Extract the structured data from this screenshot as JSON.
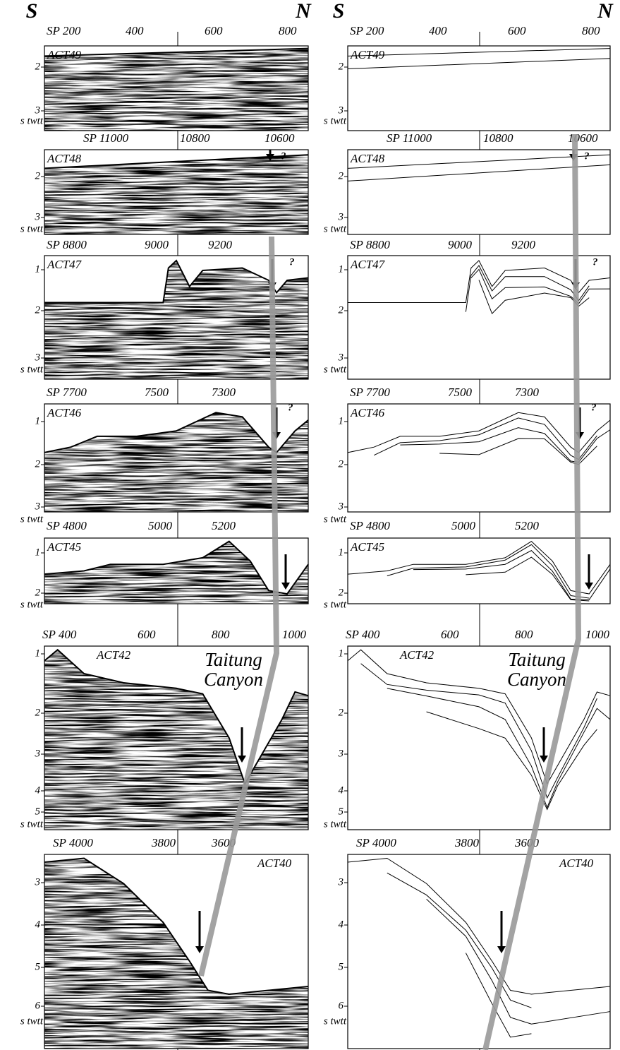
{
  "columns": [
    {
      "south": "S",
      "north": "N",
      "panels": [
        {
          "name": "ACT49",
          "sp_labels": [
            "SP 200",
            "400",
            "600",
            "800"
          ],
          "depth_labels": [
            "2",
            "3"
          ],
          "unit": "s twtt"
        },
        {
          "name": "ACT48",
          "sp_labels": [
            "SP 11000",
            "10800",
            "10600"
          ],
          "depth_labels": [
            "2",
            "3"
          ],
          "unit": "s twtt",
          "question": "?"
        },
        {
          "name": "ACT47",
          "sp_labels": [
            "SP 8800",
            "9000",
            "9200"
          ],
          "depth_labels": [
            "1",
            "2",
            "3"
          ],
          "unit": "s twtt",
          "question": "?"
        },
        {
          "name": "ACT46",
          "sp_labels": [
            "SP 7700",
            "7500",
            "7300"
          ],
          "depth_labels": [
            "1",
            "2",
            "3"
          ],
          "unit": "s twtt",
          "question": "?"
        },
        {
          "name": "ACT45",
          "sp_labels": [
            "SP 4800",
            "5000",
            "5200"
          ],
          "depth_labels": [
            "1",
            "2"
          ],
          "unit": "s twtt"
        },
        {
          "name": "ACT42",
          "sp_labels": [
            "SP 400",
            "600",
            "800",
            "1000"
          ],
          "depth_labels": [
            "1",
            "2",
            "3",
            "4",
            "5"
          ],
          "unit": "s twtt",
          "annotation": [
            "Taitung",
            "Canyon"
          ]
        },
        {
          "name": "ACT40",
          "sp_labels": [
            "SP 4000",
            "3800",
            "3600"
          ],
          "depth_labels": [
            "3",
            "4",
            "5",
            "6"
          ],
          "unit": "s twtt"
        }
      ]
    },
    {
      "south": "S",
      "north": "N",
      "panels": [
        {
          "name": "ACT49",
          "sp_labels": [
            "SP 200",
            "400",
            "600",
            "800"
          ],
          "depth_labels": [
            "2",
            "3"
          ],
          "unit": "s twtt"
        },
        {
          "name": "ACT48",
          "sp_labels": [
            "SP 11000",
            "10800",
            "10600"
          ],
          "depth_labels": [
            "2",
            "3"
          ],
          "unit": "s twtt",
          "question": "?"
        },
        {
          "name": "ACT47",
          "sp_labels": [
            "SP 8800",
            "9000",
            "9200"
          ],
          "depth_labels": [
            "1",
            "2",
            "3"
          ],
          "unit": "s twtt",
          "question": "?"
        },
        {
          "name": "ACT46",
          "sp_labels": [
            "SP 7700",
            "7500",
            "7300"
          ],
          "depth_labels": [
            "1",
            "2",
            "3"
          ],
          "unit": "s twtt",
          "question": "?"
        },
        {
          "name": "ACT45",
          "sp_labels": [
            "SP 4800",
            "5000",
            "5200"
          ],
          "depth_labels": [
            "1",
            "2"
          ],
          "unit": "s twtt"
        },
        {
          "name": "ACT42",
          "sp_labels": [
            "SP 400",
            "600",
            "800",
            "1000"
          ],
          "depth_labels": [
            "1",
            "2",
            "3",
            "4",
            "5"
          ],
          "unit": "s twtt",
          "annotation": [
            "Taitung",
            "Canyon"
          ]
        },
        {
          "name": "ACT40",
          "sp_labels": [
            "SP 4000",
            "3800",
            "3600"
          ],
          "depth_labels": [
            "3",
            "4",
            "5",
            "6"
          ],
          "unit": "s twtt"
        }
      ]
    }
  ]
}
